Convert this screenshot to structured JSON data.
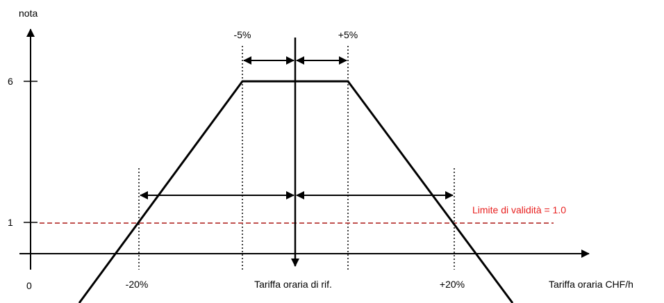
{
  "axes": {
    "y_label": "nota",
    "x_label": "Tariffa oraria CHF/h",
    "origin_label": "0",
    "y_tick_high": "6",
    "y_tick_low": "1"
  },
  "markers": {
    "minus_5": "-5%",
    "plus_5": "+5%",
    "minus_20": "-20%",
    "plus_20": "+20%",
    "reference": "Tariffa oraria di rif."
  },
  "validity": {
    "label": "Limite di validità = 1.0",
    "color": "#e8201f",
    "line_color": "#c0504d"
  },
  "colors": {
    "line": "#000000"
  }
}
